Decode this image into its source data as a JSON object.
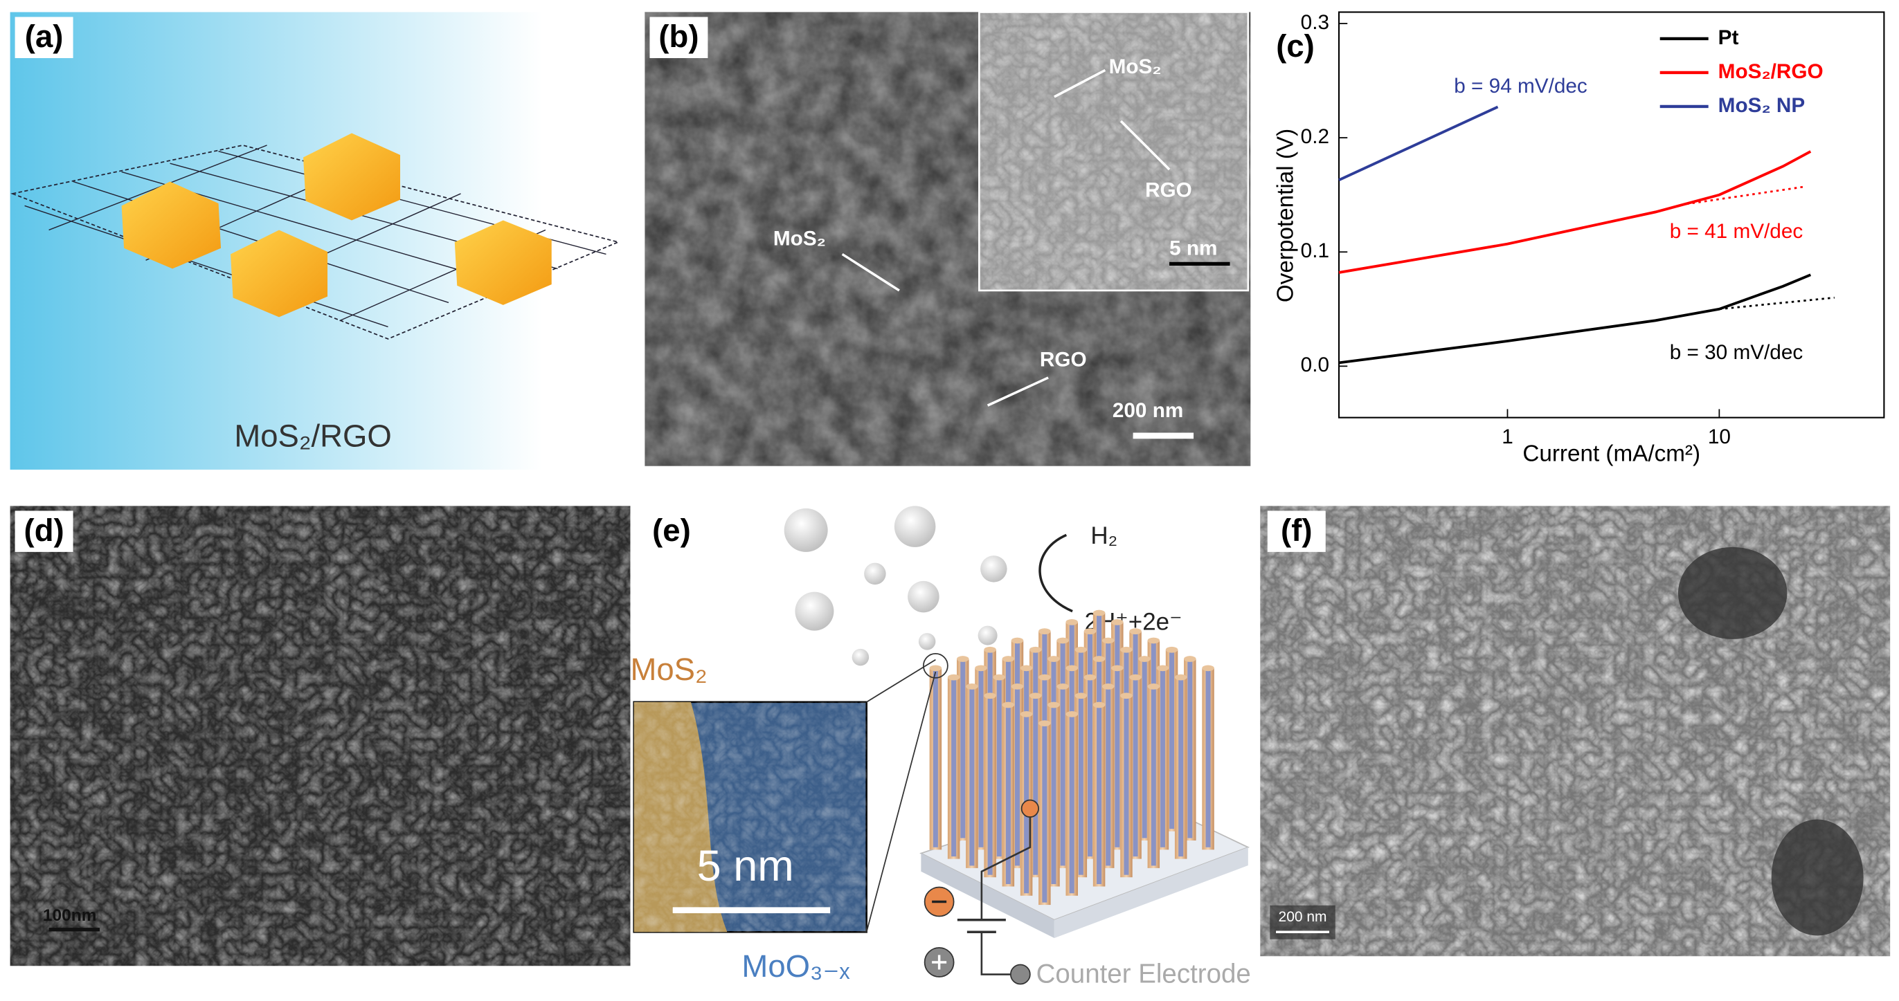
{
  "panels": [
    {
      "label": "(a)",
      "texts": [
        "MoS₂/RGO"
      ]
    },
    {
      "label": "(b)",
      "texts": [
        "MoS₂",
        "RGO",
        "5 nm",
        "MoS₂",
        "RGO",
        "200 nm"
      ]
    },
    {
      "label": "(c)"
    },
    {
      "label": "(d)",
      "texts": [
        "100nm"
      ]
    },
    {
      "label": "(e)",
      "texts": [
        "H₂",
        "2H⁺+2e⁻",
        "MoS₂",
        "5 nm",
        "MoO₃₋ₓ",
        "Counter Electrode"
      ]
    },
    {
      "label": "(f)",
      "texts": [
        "200 nm"
      ]
    }
  ],
  "chart_data": {
    "type": "line",
    "xlabel": "Current (mA/cm²)",
    "ylabel": "Overpotential (V)",
    "xscale": "log",
    "xlim": [
      0.16,
      60
    ],
    "xticks": [
      1,
      10
    ],
    "ylim": [
      -0.045,
      0.31
    ],
    "yticks": [
      {
        "value": 0,
        "label": "0.0"
      },
      0.1,
      0.2,
      0.3
    ],
    "legend": "upper right",
    "series": [
      {
        "name": "Pt",
        "color": "#000000",
        "x": [
          0.16,
          1,
          5,
          10,
          20,
          27
        ],
        "values": [
          0.003,
          0.022,
          0.04,
          0.05,
          0.07,
          0.08
        ]
      },
      {
        "name": "MoS₂/RGO",
        "color": "#ff0000",
        "x": [
          0.16,
          1,
          5,
          10,
          20,
          27
        ],
        "values": [
          0.082,
          0.107,
          0.135,
          0.15,
          0.175,
          0.188
        ]
      },
      {
        "name": "MoS₂ NP",
        "color": "#2e3d99",
        "x": [
          0.16,
          0.9
        ],
        "values": [
          0.163,
          0.227
        ]
      }
    ],
    "fits": [
      {
        "color": "#000000",
        "x": [
          10,
          35
        ],
        "values": [
          0.05,
          0.06
        ]
      },
      {
        "color": "#ff0000",
        "x": [
          7,
          25
        ],
        "values": [
          0.142,
          0.157
        ]
      }
    ],
    "annotations": [
      {
        "text": "b = 94 mV/dec",
        "color": "#2e3d99"
      },
      {
        "text": "b = 41 mV/dec",
        "color": "#ff0000"
      },
      {
        "text": "b = 30 mV/dec",
        "color": "#000000"
      }
    ]
  }
}
